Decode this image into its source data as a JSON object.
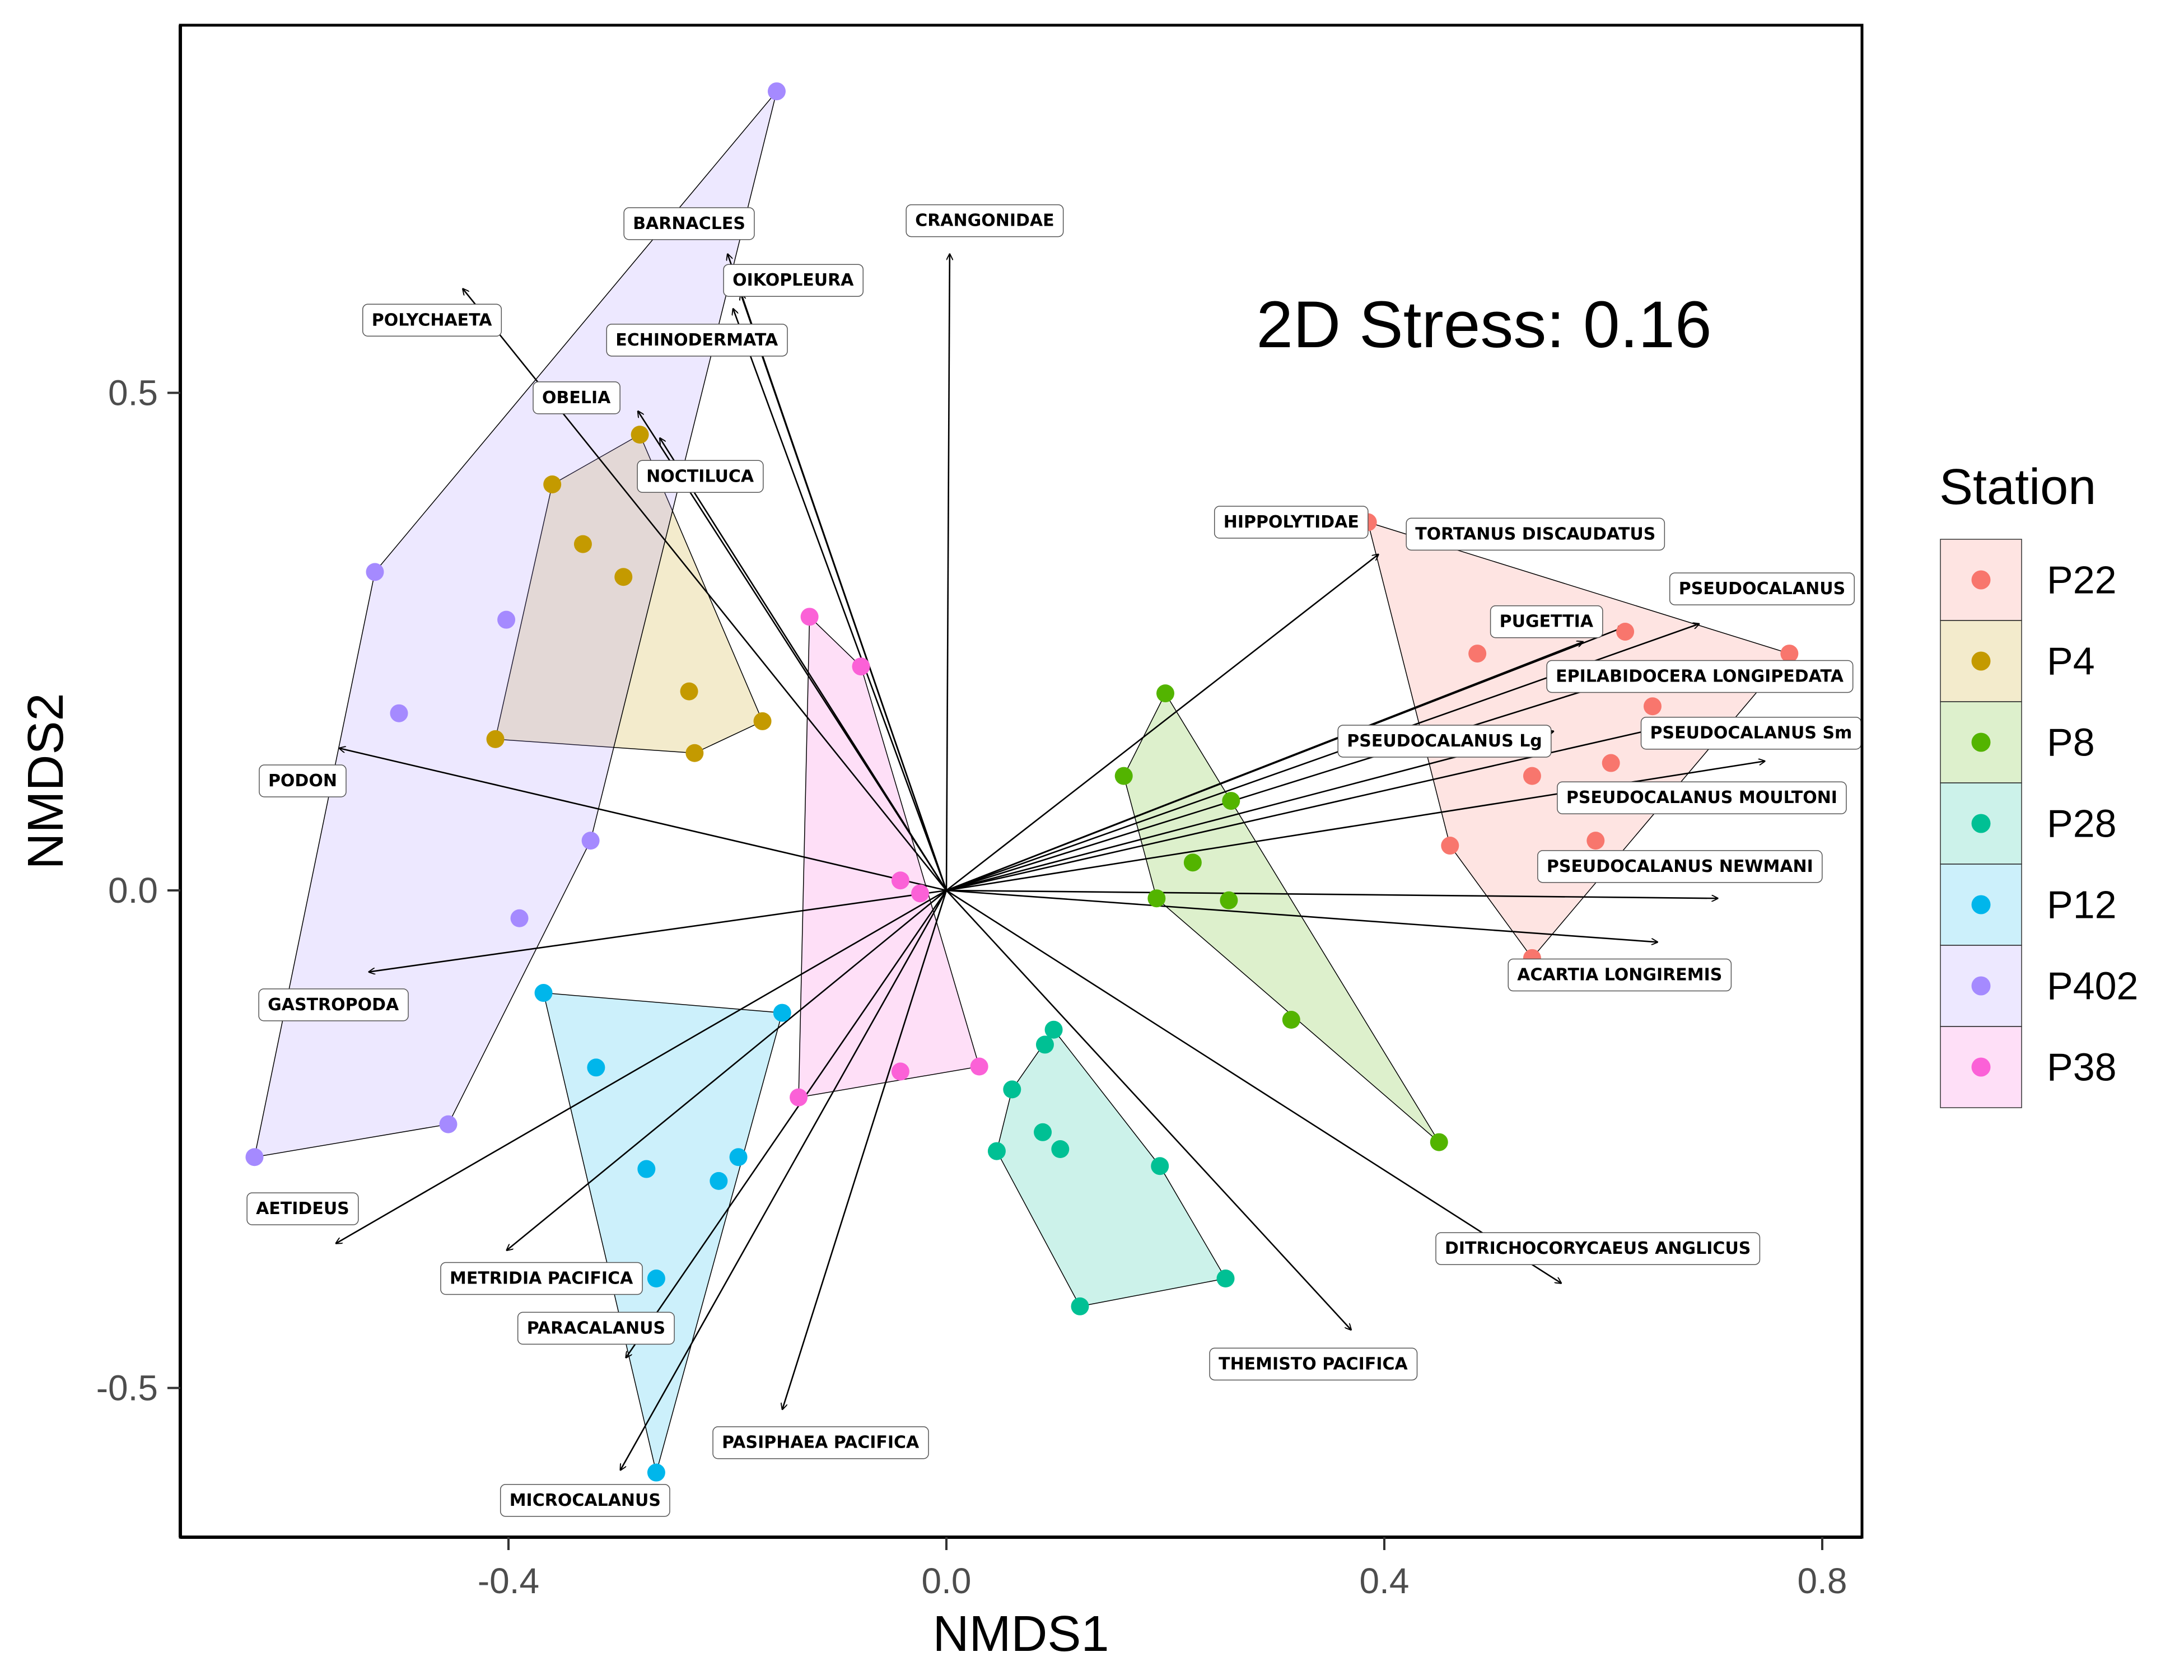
{
  "chart_data": {
    "type": "scatter",
    "title": "",
    "xlabel": "NMDS1",
    "ylabel": "NMDS2",
    "xlim": [
      -0.7,
      0.85
    ],
    "ylim": [
      -0.65,
      0.88
    ],
    "xticks": [
      {
        "value": -0.4,
        "label": "-0.4"
      },
      {
        "value": 0.0,
        "label": "0.0"
      },
      {
        "value": 0.4,
        "label": "0.4"
      },
      {
        "value": 0.8,
        "label": "0.8"
      }
    ],
    "yticks": [
      {
        "value": 0.5,
        "label": "0.5"
      },
      {
        "value": 0.0,
        "label": "0.0"
      },
      {
        "value": -0.5,
        "label": "-0.5"
      }
    ],
    "grid": false,
    "annotation": "2D Stress: 0.16",
    "legend": {
      "title": "Station",
      "placement": "right"
    },
    "series": [
      {
        "name": "P22",
        "color": "#F8766D",
        "points": [
          [
            0.485,
            0.238
          ],
          [
            0.77,
            0.238
          ],
          [
            0.645,
            0.185
          ],
          [
            0.535,
            0.115
          ],
          [
            0.607,
            0.128
          ],
          [
            0.593,
            0.05
          ],
          [
            0.46,
            0.045
          ],
          [
            0.535,
            -0.068
          ],
          [
            0.385,
            0.37
          ],
          [
            0.62,
            0.26
          ]
        ]
      },
      {
        "name": "P4",
        "color": "#C49A00",
        "points": [
          [
            -0.28,
            0.458
          ],
          [
            -0.36,
            0.408
          ],
          [
            -0.332,
            0.348
          ],
          [
            -0.295,
            0.315
          ],
          [
            -0.235,
            0.2
          ],
          [
            -0.168,
            0.17
          ],
          [
            -0.23,
            0.138
          ],
          [
            -0.412,
            0.152
          ]
        ]
      },
      {
        "name": "P8",
        "color": "#53B400",
        "points": [
          [
            0.2,
            0.198
          ],
          [
            0.162,
            0.115
          ],
          [
            0.26,
            0.09
          ],
          [
            0.225,
            0.028
          ],
          [
            0.192,
            -0.008
          ],
          [
            0.258,
            -0.01
          ],
          [
            0.315,
            -0.13
          ],
          [
            0.45,
            -0.253
          ]
        ]
      },
      {
        "name": "P28",
        "color": "#00C094",
        "points": [
          [
            0.098,
            -0.14
          ],
          [
            0.09,
            -0.155
          ],
          [
            0.06,
            -0.2
          ],
          [
            0.088,
            -0.243
          ],
          [
            0.104,
            -0.26
          ],
          [
            0.046,
            -0.262
          ],
          [
            0.195,
            -0.277
          ],
          [
            0.255,
            -0.39
          ],
          [
            0.122,
            -0.418
          ]
        ]
      },
      {
        "name": "P12",
        "color": "#00B6EB",
        "points": [
          [
            -0.368,
            -0.103
          ],
          [
            -0.32,
            -0.178
          ],
          [
            -0.15,
            -0.123
          ],
          [
            -0.274,
            -0.28
          ],
          [
            -0.19,
            -0.268
          ],
          [
            -0.208,
            -0.292
          ],
          [
            -0.265,
            -0.39
          ],
          [
            -0.265,
            -0.585
          ]
        ]
      },
      {
        "name": "P402",
        "color": "#A58AFF",
        "points": [
          [
            -0.155,
            0.803
          ],
          [
            -0.522,
            0.32
          ],
          [
            -0.402,
            0.272
          ],
          [
            -0.5,
            0.178
          ],
          [
            -0.325,
            0.05
          ],
          [
            -0.39,
            -0.028
          ],
          [
            -0.455,
            -0.235
          ],
          [
            -0.632,
            -0.268
          ]
        ]
      },
      {
        "name": "P38",
        "color": "#FB61D7",
        "points": [
          [
            -0.125,
            0.275
          ],
          [
            -0.078,
            0.225
          ],
          [
            -0.042,
            0.01
          ],
          [
            -0.024,
            -0.003
          ],
          [
            0.03,
            -0.177
          ],
          [
            -0.042,
            -0.182
          ],
          [
            -0.135,
            -0.208
          ]
        ]
      }
    ],
    "hulls": [
      {
        "name": "P22",
        "color": "#F8766D",
        "points": [
          [
            0.385,
            0.37
          ],
          [
            0.77,
            0.238
          ],
          [
            0.535,
            -0.068
          ],
          [
            0.46,
            0.045
          ]
        ]
      },
      {
        "name": "P4",
        "color": "#C49A00",
        "points": [
          [
            -0.28,
            0.458
          ],
          [
            -0.168,
            0.17
          ],
          [
            -0.23,
            0.138
          ],
          [
            -0.412,
            0.152
          ],
          [
            -0.36,
            0.408
          ]
        ]
      },
      {
        "name": "P8",
        "color": "#53B400",
        "points": [
          [
            0.2,
            0.198
          ],
          [
            0.45,
            -0.253
          ],
          [
            0.192,
            -0.008
          ],
          [
            0.162,
            0.115
          ]
        ]
      },
      {
        "name": "P28",
        "color": "#00C094",
        "points": [
          [
            0.098,
            -0.14
          ],
          [
            0.195,
            -0.277
          ],
          [
            0.255,
            -0.39
          ],
          [
            0.122,
            -0.418
          ],
          [
            0.046,
            -0.262
          ],
          [
            0.06,
            -0.2
          ]
        ]
      },
      {
        "name": "P12",
        "color": "#00B6EB",
        "points": [
          [
            -0.368,
            -0.103
          ],
          [
            -0.15,
            -0.123
          ],
          [
            -0.265,
            -0.585
          ]
        ]
      },
      {
        "name": "P402",
        "color": "#A58AFF",
        "points": [
          [
            -0.155,
            0.803
          ],
          [
            -0.325,
            0.05
          ],
          [
            -0.455,
            -0.235
          ],
          [
            -0.632,
            -0.268
          ],
          [
            -0.522,
            0.32
          ]
        ]
      },
      {
        "name": "P38",
        "color": "#FB61D7",
        "points": [
          [
            -0.125,
            0.275
          ],
          [
            -0.078,
            0.225
          ],
          [
            0.03,
            -0.177
          ],
          [
            -0.135,
            -0.208
          ]
        ]
      }
    ],
    "vectors": [
      {
        "label": "BARNACLES",
        "end": [
          -0.2,
          0.64
        ],
        "label_pos": [
          -0.235,
          0.67
        ]
      },
      {
        "label": "CRANGONIDAE",
        "end": [
          0.003,
          0.64
        ],
        "label_pos": [
          0.035,
          0.673
        ]
      },
      {
        "label": "OIKOPLEURA",
        "end": [
          -0.188,
          0.6
        ],
        "label_pos": [
          -0.14,
          0.613
        ]
      },
      {
        "label": "POLYCHAETA",
        "end": [
          -0.442,
          0.605
        ],
        "label_pos": [
          -0.47,
          0.573
        ]
      },
      {
        "label": "ECHINODERMATA",
        "end": [
          -0.195,
          0.585
        ],
        "label_pos": [
          -0.228,
          0.553
        ]
      },
      {
        "label": "OBELIA",
        "end": [
          -0.282,
          0.482
        ],
        "label_pos": [
          -0.338,
          0.495
        ]
      },
      {
        "label": "NOCTILUCA",
        "end": [
          -0.262,
          0.455
        ],
        "label_pos": [
          -0.225,
          0.416
        ]
      },
      {
        "label": "HIPPOLYTIDAE",
        "end": [
          0.395,
          0.338
        ],
        "label_pos": [
          0.315,
          0.37
        ]
      },
      {
        "label": "TORTANUS DISCAUDATUS",
        "end": [
          0.62,
          0.265
        ],
        "label_pos": [
          0.538,
          0.358
        ]
      },
      {
        "label": "PSEUDOCALANUS",
        "end": [
          0.688,
          0.268
        ],
        "label_pos": [
          0.745,
          0.303
        ]
      },
      {
        "label": "PUGETTIA",
        "end": [
          0.582,
          0.25
        ],
        "label_pos": [
          0.548,
          0.27
        ]
      },
      {
        "label": "EPILABIDOCERA LONGIPEDATA",
        "end": [
          0.61,
          0.21
        ],
        "label_pos": [
          0.688,
          0.215
        ]
      },
      {
        "label": "PSEUDOCALANUS Lg",
        "end": [
          0.555,
          0.16
        ],
        "label_pos": [
          0.455,
          0.15
        ]
      },
      {
        "label": "PSEUDOCALANUS Sm",
        "end": [
          0.678,
          0.17
        ],
        "label_pos": [
          0.735,
          0.158
        ]
      },
      {
        "label": "PSEUDOCALANUS MOULTONI",
        "end": [
          0.748,
          0.13
        ],
        "label_pos": [
          0.69,
          0.093
        ]
      },
      {
        "label": "PSEUDOCALANUS NEWMANI",
        "end": [
          0.705,
          -0.008
        ],
        "label_pos": [
          0.67,
          0.024
        ]
      },
      {
        "label": "ACARTIA LONGIREMIS",
        "end": [
          0.65,
          -0.052
        ],
        "label_pos": [
          0.615,
          -0.085
        ]
      },
      {
        "label": "PODON",
        "end": [
          -0.555,
          0.143
        ],
        "label_pos": [
          -0.588,
          0.11
        ]
      },
      {
        "label": "GASTROPODA",
        "end": [
          -0.528,
          -0.082
        ],
        "label_pos": [
          -0.56,
          -0.115
        ]
      },
      {
        "label": "AETIDEUS",
        "end": [
          -0.558,
          -0.355
        ],
        "label_pos": [
          -0.588,
          -0.32
        ]
      },
      {
        "label": "METRIDIA PACIFICA",
        "end": [
          -0.402,
          -0.362
        ],
        "label_pos": [
          -0.37,
          -0.39
        ]
      },
      {
        "label": "PARACALANUS",
        "end": [
          -0.293,
          -0.47
        ],
        "label_pos": [
          -0.32,
          -0.44
        ]
      },
      {
        "label": "PASIPHAEA PACIFICA",
        "end": [
          -0.15,
          -0.522
        ],
        "label_pos": [
          -0.115,
          -0.555
        ]
      },
      {
        "label": "MICROCALANUS",
        "end": [
          -0.298,
          -0.583
        ],
        "label_pos": [
          -0.33,
          -0.613
        ]
      },
      {
        "label": "DITRICHOCORYCAEUS ANGLICUS",
        "end": [
          0.562,
          -0.395
        ],
        "label_pos": [
          0.595,
          -0.36
        ]
      },
      {
        "label": "THEMISTO PACIFICA",
        "end": [
          0.37,
          -0.442
        ],
        "label_pos": [
          0.335,
          -0.476
        ]
      }
    ]
  }
}
